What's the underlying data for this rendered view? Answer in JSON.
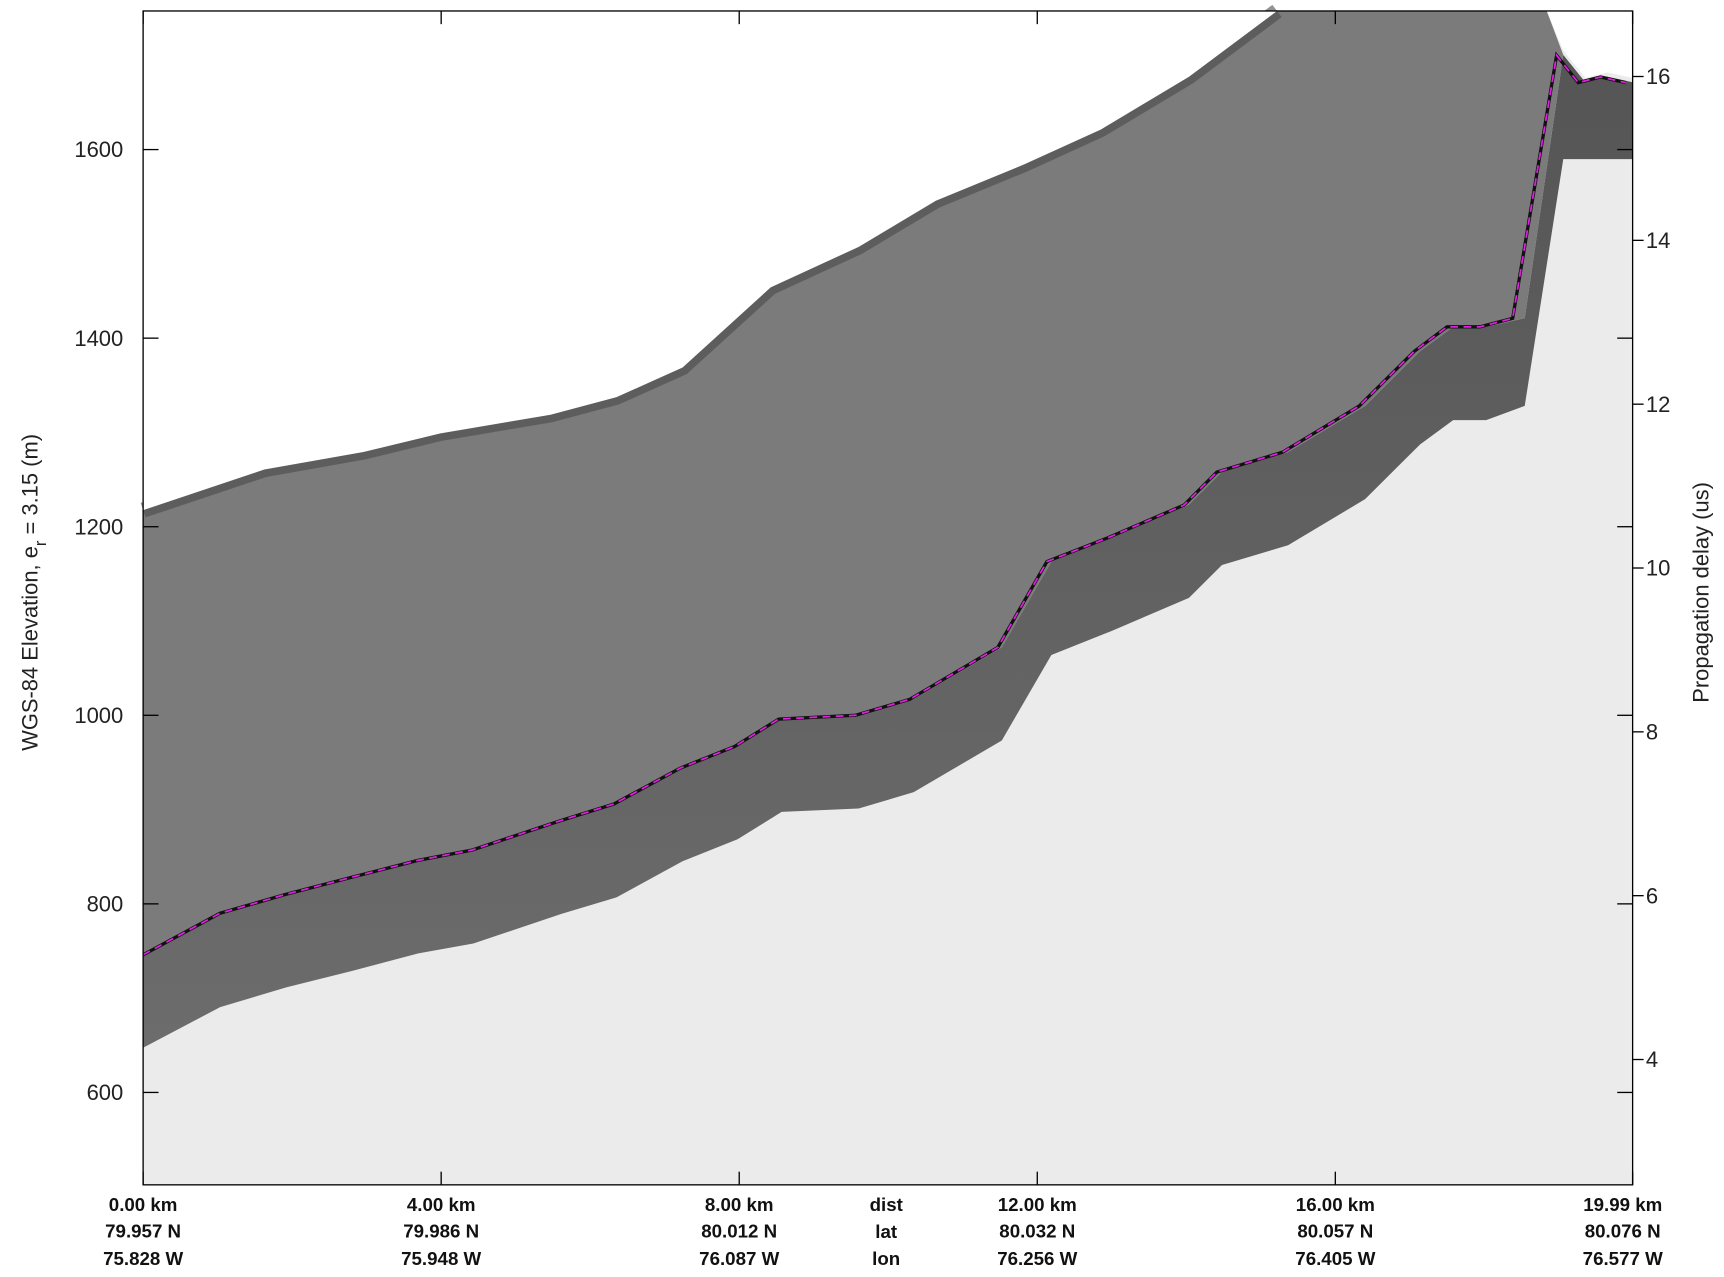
{
  "chart_data": {
    "type": "line",
    "y_label": {
      "main": "WGS-84 Elevation, e",
      "subscript": "r",
      "rest": " = 3.15 (m)"
    },
    "y2_label": "Propagation delay (us)",
    "xlim": [
      0,
      19.99
    ],
    "xticks": [
      {
        "value": 0,
        "label": "0.00 km"
      },
      {
        "value": 4,
        "label": "4.00 km"
      },
      {
        "value": 8,
        "label": "8.00 km"
      },
      {
        "value": 12,
        "label": "12.00 km"
      },
      {
        "value": 16,
        "label": "16.00 km"
      },
      {
        "value": 19.99,
        "label": "19.99 km"
      }
    ],
    "lat_labels": [
      "79.957 N",
      "79.986 N",
      "80.012 N",
      "80.032 N",
      "80.057 N",
      "80.076 N"
    ],
    "lon_labels": [
      "75.828 W",
      "75.948 W",
      "76.087 W",
      "76.256 W",
      "76.405 W",
      "76.577 W"
    ],
    "row_labels": [
      "dist",
      "lat",
      "lon"
    ],
    "ylim": [
      502,
      1747
    ],
    "yticks": [
      600,
      800,
      1000,
      1200,
      1400,
      1600
    ],
    "y2lim": [
      2.47,
      16.8
    ],
    "y2ticks": [
      4,
      6,
      8,
      10,
      12,
      14,
      16
    ],
    "x": [
      0,
      1.03,
      1.91,
      2.79,
      3.68,
      4.41,
      5.59,
      6.32,
      7.21,
      7.94,
      8.53,
      9.56,
      10.29,
      11.47,
      12.13,
      12.94,
      13.97,
      14.41,
      15.29,
      16.32,
      17.06,
      17.5,
      17.94,
      18.38,
      18.97,
      19.26,
      19.56,
      19.9
    ],
    "series": [
      {
        "color": "#e020e0",
        "values": [
          746,
          790,
          810,
          828,
          846,
          857,
          888,
          906,
          944,
          967,
          996,
          1000,
          1017,
          1072,
          1163,
          1188,
          1223,
          1258,
          1279,
          1328,
          1386,
          1412,
          1412,
          1421,
          1700,
          1671,
          1677,
          1671
        ]
      }
    ]
  }
}
